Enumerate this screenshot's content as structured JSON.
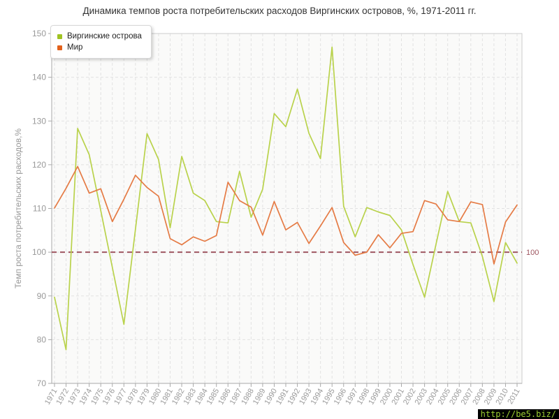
{
  "page": {
    "title": "Динамика темпов роста потребительских расходов Виргинских островов, %, 1971-2011 гг.",
    "watermark": "http://be5.biz/"
  },
  "legend": {
    "items": [
      {
        "label": "Виргинские острова",
        "color": "#a0c322"
      },
      {
        "label": "Мир",
        "color": "#e2611c"
      }
    ]
  },
  "colors": {
    "plot_bg": "#fafaf9",
    "grid": "#e2e2e2",
    "border": "#cccccc",
    "axis": "#aaaaaa",
    "tick_text": "#999999",
    "title_text": "#333333",
    "reference": "#9e5660",
    "watermark_bg": "#000000",
    "watermark_text": "#9ccd32"
  },
  "chart_data": {
    "type": "line",
    "title": "Динамика темпов роста потребительских расходов Виргинских островов, %, 1971-2011 гг.",
    "xlabel": "",
    "ylabel": "Темп роста потребительских расходов,%",
    "ylim": [
      70,
      150
    ],
    "yticks": [
      70,
      80,
      90,
      100,
      110,
      120,
      130,
      140,
      150
    ],
    "grid": true,
    "legend_position": "top-left",
    "reference_line": {
      "value": 100,
      "label": "100"
    },
    "categories": [
      "1971",
      "1972",
      "1973",
      "1974",
      "1975",
      "1976",
      "1977",
      "1978",
      "1979",
      "1980",
      "1981",
      "1982",
      "1983",
      "1984",
      "1985",
      "1986",
      "1987",
      "1988",
      "1989",
      "1990",
      "1991",
      "1992",
      "1993",
      "1994",
      "1995",
      "1996",
      "1997",
      "1998",
      "1999",
      "2000",
      "2001",
      "2002",
      "2003",
      "2004",
      "2005",
      "2006",
      "2007",
      "2008",
      "2009",
      "2010",
      "2011"
    ],
    "series": [
      {
        "name": "Виргинские острова",
        "color": "#b9d24b",
        "values": [
          89.7,
          77.7,
          128.3,
          122.3,
          109.5,
          96.5,
          83.5,
          105.2,
          127.1,
          121.2,
          105.6,
          121.9,
          113.5,
          111.8,
          107.0,
          106.7,
          118.5,
          108.0,
          114.4,
          131.7,
          128.7,
          137.3,
          127.2,
          121.4,
          146.9,
          110.5,
          103.5,
          110.2,
          109.2,
          108.4,
          105.1,
          97.2,
          89.7,
          101.9,
          113.9,
          107.0,
          106.7,
          99.0,
          88.7,
          102.2,
          97.5
        ]
      },
      {
        "name": "Мир",
        "color": "#e57b45",
        "values": [
          110.1,
          114.6,
          119.6,
          113.5,
          114.5,
          107.0,
          112.1,
          117.6,
          114.8,
          112.8,
          103.1,
          101.7,
          103.5,
          102.5,
          103.8,
          116.0,
          111.8,
          110.3,
          103.9,
          111.6,
          105.1,
          106.8,
          102.0,
          106.0,
          110.2,
          102.2,
          99.3,
          100.0,
          104.0,
          101.0,
          104.3,
          104.7,
          111.8,
          111.0,
          107.4,
          107.0,
          111.5,
          110.9,
          97.3,
          106.9,
          110.8
        ]
      }
    ]
  }
}
